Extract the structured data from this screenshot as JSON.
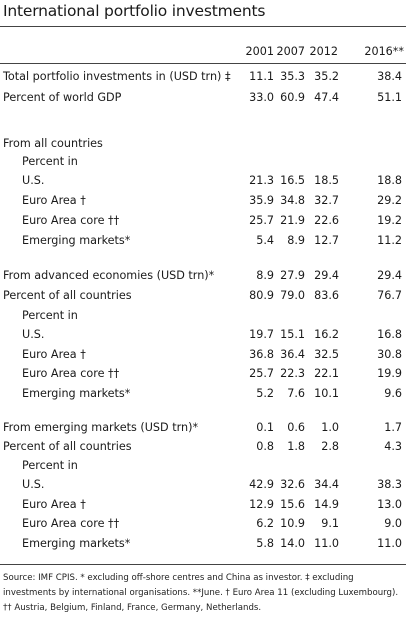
{
  "title": "International portfolio investments",
  "columns": [
    "2001",
    "2007",
    "2012",
    "2016**"
  ],
  "rows": [
    {
      "label": "Total portfolio investments in (USD trn) ‡",
      "values": [
        "11.1",
        "35.3",
        "35.2",
        "38.4"
      ]
    },
    {
      "label": "Percent of world GDP",
      "values": [
        "33.0",
        "60.9",
        "47.4",
        "51.1"
      ]
    },
    {
      "label": "From all countries",
      "values": [
        "",
        "",
        "",
        ""
      ]
    },
    {
      "label": "Percent in",
      "values": [
        "",
        "",
        "",
        ""
      ]
    },
    {
      "label": "U.S.",
      "values": [
        "21.3",
        "16.5",
        "18.5",
        "18.8"
      ]
    },
    {
      "label": "Euro Area †",
      "values": [
        "35.9",
        "34.8",
        "32.7",
        "29.2"
      ]
    },
    {
      "label": "Euro Area core ††",
      "values": [
        "25.7",
        "21.9",
        "22.6",
        "19.2"
      ]
    },
    {
      "label": "Emerging markets*",
      "values": [
        "5.4",
        "8.9",
        "12.7",
        "11.2"
      ]
    },
    {
      "label": "From advanced economies (USD trn)*",
      "values": [
        "8.9",
        "27.9",
        "29.4",
        "29.4"
      ]
    },
    {
      "label": "Percent of all countries",
      "values": [
        "80.9",
        "79.0",
        "83.6",
        "76.7"
      ]
    },
    {
      "label": "Percent in",
      "values": [
        "",
        "",
        "",
        ""
      ]
    },
    {
      "label": "U.S.",
      "values": [
        "19.7",
        "15.1",
        "16.2",
        "16.8"
      ]
    },
    {
      "label": "Euro Area †",
      "values": [
        "36.8",
        "36.4",
        "32.5",
        "30.8"
      ]
    },
    {
      "label": "Euro Area core ††",
      "values": [
        "25.7",
        "22.3",
        "22.1",
        "19.9"
      ]
    },
    {
      "label": "Emerging markets*",
      "values": [
        "5.2",
        "7.6",
        "10.1",
        "9.6"
      ]
    },
    {
      "label": "From emerging markets (USD trn)*",
      "values": [
        "0.1",
        "0.6",
        "1.0",
        "1.7"
      ]
    },
    {
      "label": "Percent of all countries",
      "values": [
        "0.8",
        "1.8",
        "2.8",
        "4.3"
      ]
    },
    {
      "label": "Percent in",
      "values": [
        "",
        "",
        "",
        ""
      ]
    },
    {
      "label": "U.S.",
      "values": [
        "42.9",
        "32.6",
        "34.4",
        "38.3"
      ]
    },
    {
      "label": "Euro Area †",
      "values": [
        "12.9",
        "15.6",
        "14.9",
        "13.0"
      ]
    },
    {
      "label": "Euro Area core ††",
      "values": [
        "6.2",
        "10.9",
        "9.1",
        "9.0"
      ]
    },
    {
      "label": "Emerging markets*",
      "values": [
        "5.8",
        "14.0",
        "11.0",
        "11.0"
      ]
    }
  ],
  "footer": "Source: IMF CPIS. * excluding off-shore centres and China as investor. ‡ excluding investments by international organisations. **June. † Euro Area 11 (excluding Luxembourg). †† Austria, Belgium, Finland, France, Germany, Netherlands."
}
